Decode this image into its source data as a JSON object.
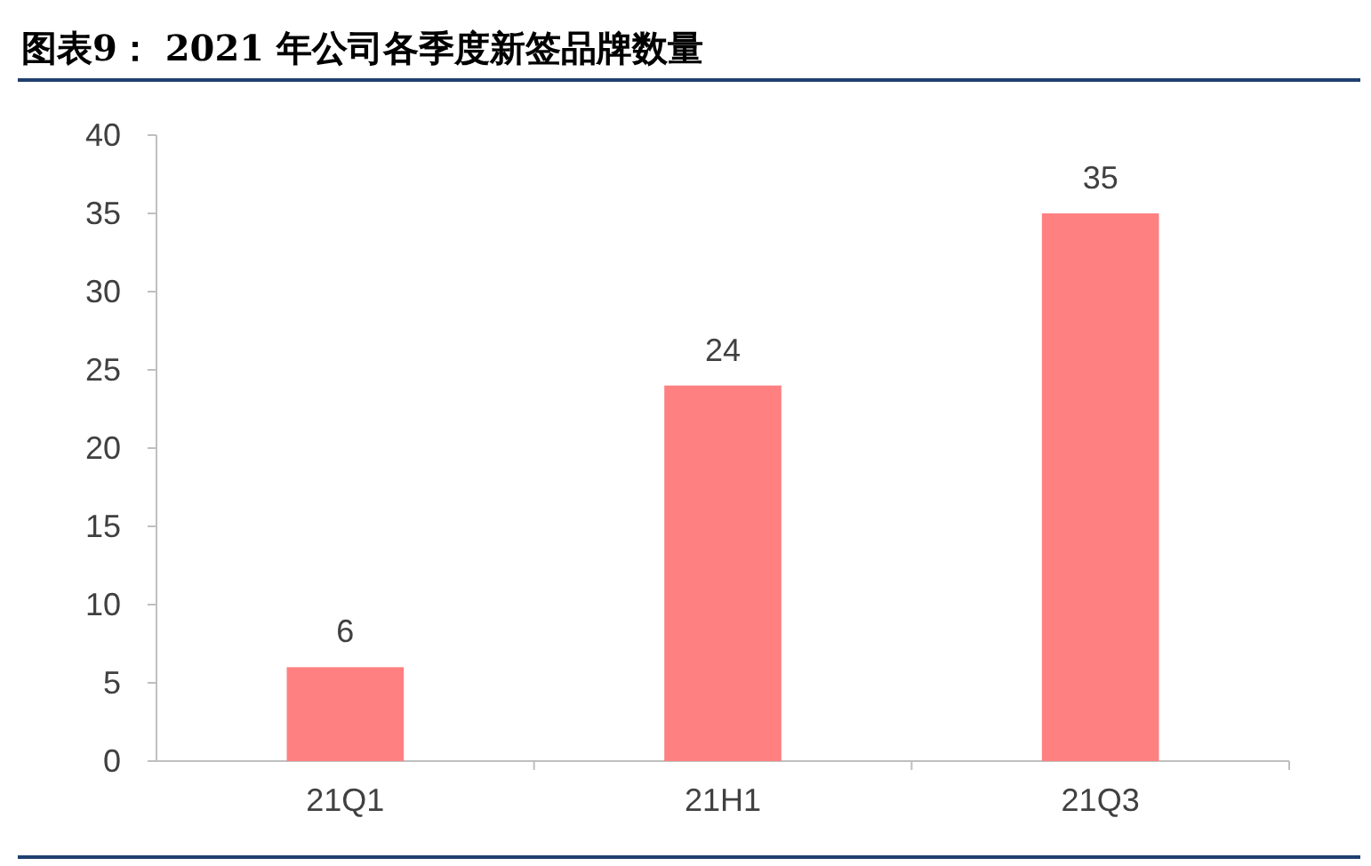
{
  "chart_data": {
    "type": "bar",
    "title": "图表9： 2021 年公司各季度新签品牌数量",
    "categories": [
      "21Q1",
      "21H1",
      "21Q3"
    ],
    "values": [
      6,
      24,
      35
    ],
    "color": "#ff8080",
    "ylim": [
      0,
      40
    ],
    "yticks": [
      0,
      5,
      10,
      15,
      20,
      25,
      30,
      35,
      40
    ],
    "data_labels": true
  }
}
